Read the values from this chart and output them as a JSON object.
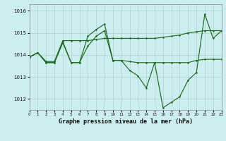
{
  "background_color": "#cdeef0",
  "grid_color": "#b0d0d0",
  "line_color": "#1e6b1e",
  "title": "Graphe pression niveau de la mer (hPa)",
  "xlim": [
    0,
    23
  ],
  "ylim": [
    1011.5,
    1016.3
  ],
  "yticks": [
    1012,
    1013,
    1014,
    1015,
    1016
  ],
  "xticks": [
    0,
    1,
    2,
    3,
    4,
    5,
    6,
    7,
    8,
    9,
    10,
    11,
    12,
    13,
    14,
    15,
    16,
    17,
    18,
    19,
    20,
    21,
    22,
    23
  ],
  "s1_x": [
    0,
    1,
    2,
    3,
    4,
    5,
    6,
    7,
    8,
    9,
    10,
    11,
    12,
    13,
    14,
    15,
    16,
    17,
    18,
    19,
    20,
    21,
    22,
    23
  ],
  "s1_y": [
    1013.9,
    1014.1,
    1013.7,
    1013.7,
    1014.65,
    1014.65,
    1014.65,
    1014.65,
    1014.7,
    1014.75,
    1014.75,
    1014.75,
    1014.75,
    1014.75,
    1014.75,
    1014.75,
    1014.8,
    1014.85,
    1014.9,
    1015.0,
    1015.05,
    1015.1,
    1015.1,
    1015.1
  ],
  "s2_x": [
    0,
    1,
    2,
    3,
    4,
    5,
    6,
    7,
    8,
    9,
    10,
    11,
    12,
    13,
    14,
    15,
    16,
    17,
    18,
    19,
    20,
    21,
    22,
    23
  ],
  "s2_y": [
    1013.9,
    1014.1,
    1013.65,
    1013.65,
    1014.6,
    1013.65,
    1013.65,
    1014.4,
    1014.85,
    1015.1,
    1013.75,
    1013.75,
    1013.7,
    1013.65,
    1013.65,
    1013.65,
    1013.65,
    1013.65,
    1013.65,
    1013.65,
    1013.75,
    1013.8,
    1013.8,
    1013.8
  ],
  "s3_x": [
    0,
    1,
    2,
    3,
    4,
    5,
    6,
    7,
    8,
    9,
    10,
    11,
    12,
    13,
    14,
    15,
    16,
    17,
    18,
    19,
    20,
    21,
    22,
    23
  ],
  "s3_y": [
    1013.9,
    1014.1,
    1013.65,
    1013.65,
    1014.55,
    1013.65,
    1013.65,
    1014.85,
    1015.15,
    1015.4,
    1013.75,
    1013.75,
    1013.3,
    1013.05,
    1012.5,
    1013.65,
    1011.6,
    1011.85,
    1012.1,
    1012.85,
    1013.2,
    1015.85,
    1014.75,
    1015.1
  ]
}
